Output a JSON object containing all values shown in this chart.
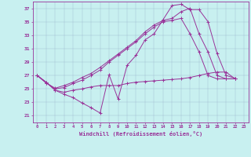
{
  "xlabel": "Windchill (Refroidissement éolien,°C)",
  "background_color": "#c8f0f0",
  "line_color": "#993399",
  "xlim": [
    -0.5,
    23.5
  ],
  "ylim": [
    20.0,
    38.0
  ],
  "xticks": [
    0,
    1,
    2,
    3,
    4,
    5,
    6,
    7,
    8,
    9,
    10,
    11,
    12,
    13,
    14,
    15,
    16,
    17,
    18,
    19,
    20,
    21,
    22,
    23
  ],
  "yticks": [
    21,
    23,
    25,
    27,
    29,
    31,
    33,
    35,
    37
  ],
  "s1_x": [
    0,
    1,
    2,
    3,
    4,
    5,
    6,
    7,
    8,
    9,
    10,
    11,
    12,
    13,
    14,
    15,
    16,
    17,
    18,
    19,
    20,
    21,
    22
  ],
  "s1_y": [
    27.0,
    26.0,
    24.8,
    24.2,
    23.7,
    22.9,
    22.2,
    21.4,
    27.1,
    23.5,
    28.5,
    30.0,
    32.3,
    33.2,
    35.3,
    37.4,
    37.6,
    36.8,
    36.8,
    35.0,
    30.3,
    27.0,
    26.6
  ],
  "s2_x": [
    0,
    1,
    2,
    3,
    4,
    5,
    6,
    7,
    8,
    9,
    10,
    11,
    12,
    13,
    14,
    15,
    16,
    17,
    18,
    19,
    20,
    21,
    22
  ],
  "s2_y": [
    27.0,
    25.9,
    25.0,
    25.2,
    25.8,
    26.3,
    27.0,
    27.8,
    29.0,
    30.0,
    31.0,
    32.0,
    33.2,
    34.2,
    35.0,
    35.2,
    35.5,
    33.2,
    30.5,
    27.0,
    26.5,
    26.5,
    26.5
  ],
  "s3_x": [
    0,
    1,
    2,
    3,
    4,
    5,
    6,
    7,
    8,
    9,
    10,
    11,
    12,
    13,
    14,
    15,
    16,
    17,
    18,
    19,
    20,
    21,
    22
  ],
  "s3_y": [
    27.0,
    25.9,
    25.1,
    25.5,
    26.0,
    26.7,
    27.3,
    28.2,
    29.2,
    30.2,
    31.2,
    32.2,
    33.5,
    34.5,
    35.2,
    35.5,
    36.5,
    37.0,
    33.2,
    30.5,
    27.0,
    26.5,
    26.5
  ],
  "s4_x": [
    0,
    1,
    2,
    3,
    4,
    5,
    6,
    7,
    8,
    9,
    10,
    11,
    12,
    13,
    14,
    15,
    16,
    17,
    18,
    19,
    20,
    21,
    22
  ],
  "s4_y": [
    27.0,
    26.0,
    24.8,
    24.5,
    24.8,
    25.0,
    25.3,
    25.5,
    25.5,
    25.5,
    25.8,
    26.0,
    26.1,
    26.2,
    26.3,
    26.4,
    26.5,
    26.7,
    27.0,
    27.3,
    27.5,
    27.5,
    26.5
  ]
}
